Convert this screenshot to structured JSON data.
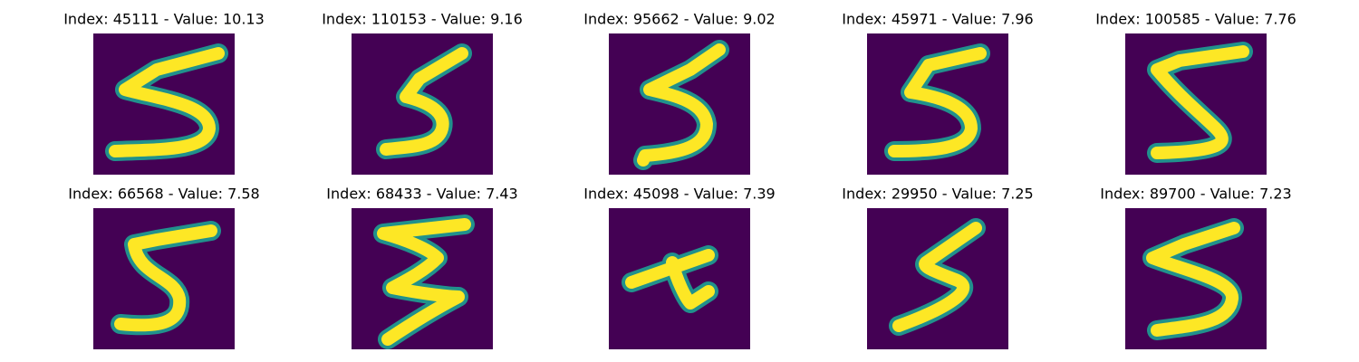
{
  "panels": [
    {
      "title": "Index: 45111 - Value: 10.13"
    },
    {
      "title": "Index: 110153 - Value: 9.16"
    },
    {
      "title": "Index: 95662 - Value: 9.02"
    },
    {
      "title": "Index: 45971 - Value: 7.96"
    },
    {
      "title": "Index: 100585 - Value: 7.76"
    },
    {
      "title": "Index: 66568 - Value: 7.58"
    },
    {
      "title": "Index: 68433 - Value: 7.43"
    },
    {
      "title": "Index: 45098 - Value: 7.39"
    },
    {
      "title": "Index: 29950 - Value: 7.25"
    },
    {
      "title": "Index: 89700 - Value: 7.23"
    }
  ]
}
